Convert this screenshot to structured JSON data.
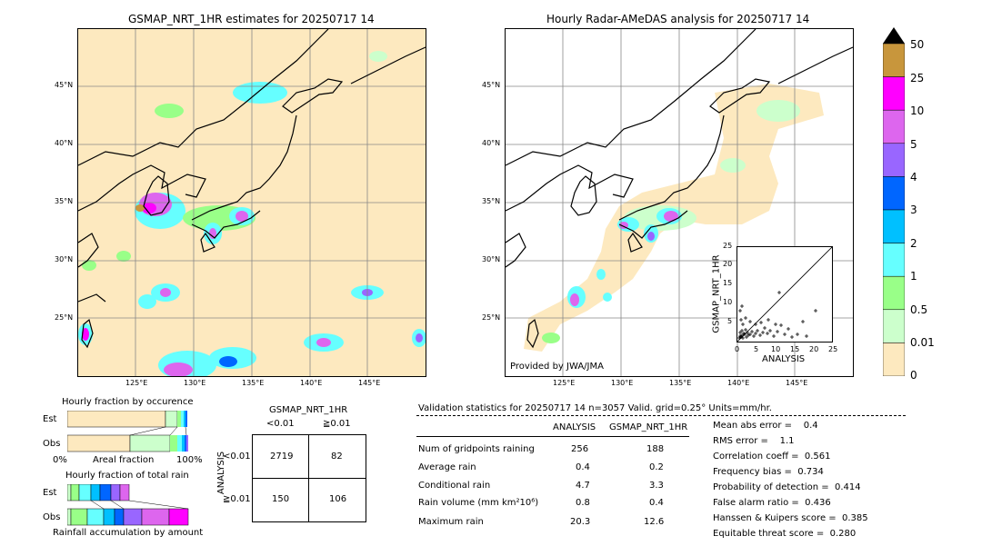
{
  "left_map": {
    "title": "GSMAP_NRT_1HR estimates for 20250717 14",
    "lat_ticks": [
      "45°N",
      "40°N",
      "35°N",
      "30°N",
      "25°N"
    ],
    "lon_ticks": [
      "125°E",
      "130°E",
      "135°E",
      "140°E",
      "145°E"
    ]
  },
  "right_map": {
    "title": "Hourly Radar-AMeDAS analysis for 20250717 14",
    "lat_ticks": [
      "45°N",
      "40°N",
      "35°N",
      "30°N",
      "25°N"
    ],
    "lon_ticks": [
      "125°E",
      "130°E",
      "135°E",
      "140°E",
      "145°E"
    ],
    "credit": "Provided by JWA/JMA"
  },
  "colorbar": {
    "labels": [
      "50",
      "25",
      "10",
      "5",
      "4",
      "3",
      "2",
      "1",
      "0.5",
      "0.01",
      "0"
    ],
    "colors": [
      "#c8963c",
      "#ff00ff",
      "#dd66ee",
      "#9966ff",
      "#0066ff",
      "#00c0ff",
      "#66ffff",
      "#99ff88",
      "#ccffcc",
      "#fde9bf"
    ]
  },
  "scatter": {
    "xlabel": "ANALYSIS",
    "ylabel": "GSMAP_NRT_1HR",
    "ticks": [
      "0",
      "5",
      "10",
      "15",
      "20",
      "25"
    ]
  },
  "occurrence": {
    "title": "Hourly fraction by occurence",
    "row_labels": [
      "Est",
      "Obs"
    ],
    "axis_left": "0%",
    "axis_mid": "Areal fraction",
    "axis_right": "100%"
  },
  "amount": {
    "title": "Hourly fraction of total rain",
    "row_labels": [
      "Est",
      "Obs"
    ],
    "footer": "Rainfall accumulation by amount"
  },
  "contingency": {
    "title": "GSMAP_NRT_1HR",
    "col_labels": [
      "<0.01",
      "≧0.01"
    ],
    "row_axis": "ANALYSIS",
    "row_labels": [
      "<0.01",
      "≧0.01"
    ],
    "cells": [
      [
        "2719",
        "82"
      ],
      [
        "150",
        "106"
      ]
    ]
  },
  "validation": {
    "header": "Validation statistics for 20250717 14  n=3057 Valid. grid=0.25° Units=mm/hr.",
    "col_headers": [
      "ANALYSIS",
      "GSMAP_NRT_1HR"
    ],
    "rows": [
      {
        "label": "Num of gridpoints raining",
        "a": "256",
        "g": "188"
      },
      {
        "label": "Average rain",
        "a": "0.4",
        "g": "0.2"
      },
      {
        "label": "Conditional rain",
        "a": "4.7",
        "g": "3.3"
      },
      {
        "label": "Rain volume (mm km²10⁶)",
        "a": "0.8",
        "g": "0.4"
      },
      {
        "label": "Maximum rain",
        "a": "20.3",
        "g": "12.6"
      }
    ],
    "scores": [
      "Mean abs error =    0.4",
      "RMS error =    1.1",
      "Correlation coeff =  0.561",
      "Frequency bias =  0.734",
      "Probability of detection =  0.414",
      "False alarm ratio =  0.436",
      "Hanssen & Kuipers score =  0.385",
      "Equitable threat score =  0.280"
    ]
  }
}
